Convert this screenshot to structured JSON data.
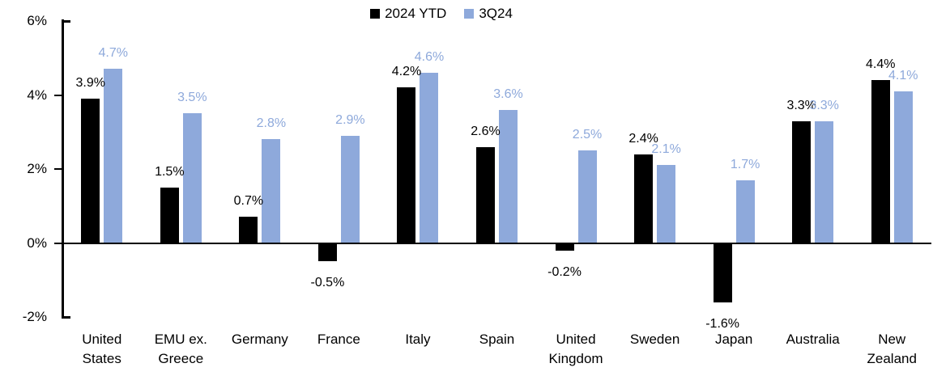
{
  "chart_data": {
    "type": "bar",
    "title": "",
    "categories": [
      "United States",
      "EMU ex. Greece",
      "Germany",
      "France",
      "Italy",
      "Spain",
      "United Kingdom",
      "Sweden",
      "Japan",
      "Australia",
      "New Zealand"
    ],
    "category_label_lines": [
      [
        "United",
        "States"
      ],
      [
        "EMU ex.",
        "Greece"
      ],
      [
        "Germany"
      ],
      [
        "France"
      ],
      [
        "Italy"
      ],
      [
        "Spain"
      ],
      [
        "United",
        "Kingdom"
      ],
      [
        "Sweden"
      ],
      [
        "Japan"
      ],
      [
        "Australia"
      ],
      [
        "New",
        "Zealand"
      ]
    ],
    "series": [
      {
        "name": "2024 YTD",
        "color": "#000000",
        "values": [
          3.9,
          1.5,
          0.7,
          -0.5,
          4.2,
          2.6,
          -0.2,
          2.4,
          -1.6,
          3.3,
          4.4
        ]
      },
      {
        "name": "3Q24",
        "color": "#8EA9DB",
        "values": [
          4.7,
          3.5,
          2.8,
          2.9,
          4.6,
          3.6,
          2.5,
          2.1,
          1.7,
          3.3,
          4.1
        ]
      }
    ],
    "value_label_format": "0.0%",
    "ylim": [
      -2,
      6
    ],
    "y_ticks": [
      {
        "value": 6,
        "label": "6%"
      },
      {
        "value": 4,
        "label": "4%"
      },
      {
        "value": 2,
        "label": "2%"
      },
      {
        "value": 0,
        "label": "0%"
      },
      {
        "value": -2,
        "label": "-2%"
      }
    ],
    "grid": false,
    "legend_position": "top-center"
  }
}
